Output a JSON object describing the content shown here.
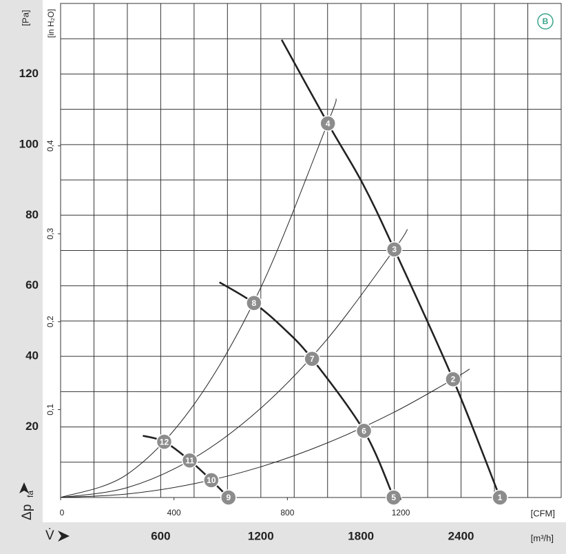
{
  "chart_data": {
    "type": "fan-curve",
    "badge": "B",
    "y_label": "[Pa]",
    "y2_label": "[in H₂O]",
    "y_symbol": "Δp",
    "y_subscript": "fa",
    "x_symbol": "V̇",
    "x_label": "[m³/h]",
    "x2_label": "[CFM]",
    "xlim": [
      0,
      3000
    ],
    "xticks": [
      600,
      1200,
      1800,
      2400
    ],
    "minor_xticks": [
      0,
      200,
      400,
      800,
      1000,
      1400,
      1600,
      2000,
      2200,
      2600,
      2800,
      3000
    ],
    "x2lim": [
      0,
      1765.7
    ],
    "x2ticks": [
      0,
      400,
      800,
      1200
    ],
    "ylim": [
      0,
      140
    ],
    "yticks": [
      20,
      40,
      60,
      80,
      100,
      120
    ],
    "minor_yticks": [
      0,
      10,
      30,
      50,
      70,
      90,
      110,
      130,
      140
    ],
    "y2lim": [
      0,
      0.562
    ],
    "y2ticks": [
      {
        "value": 0.1,
        "label": "0,1"
      },
      {
        "value": 0.2,
        "label": "0,2"
      },
      {
        "value": 0.3,
        "label": "0,3"
      },
      {
        "value": 0.4,
        "label": "0,4"
      }
    ],
    "series": [
      {
        "kind": "fan",
        "color": "#222222",
        "x": [
          1325,
          1602,
          1810,
          2000,
          2352,
          2633
        ],
        "values": [
          129.7,
          106,
          89,
          70.3,
          33.5,
          0
        ]
      },
      {
        "kind": "fan",
        "color": "#222222",
        "x": [
          952,
          1159,
          1333,
          1507,
          1818,
          1996
        ],
        "values": [
          61,
          55.1,
          48.1,
          39.3,
          18.9,
          0
        ]
      },
      {
        "kind": "fan",
        "color": "#222222",
        "x": [
          493,
          621,
          774,
          903,
          1006
        ],
        "values": [
          17.5,
          15.8,
          10.5,
          4.9,
          0
        ]
      },
      {
        "kind": "system",
        "color": "#222222",
        "x": [
          0,
          400,
          800,
          1200,
          1600,
          1652
        ],
        "values": [
          0,
          6.6,
          26.4,
          59.5,
          106,
          113
        ]
      },
      {
        "kind": "system",
        "color": "#222222",
        "x": [
          0,
          400,
          800,
          1200,
          1600,
          2000,
          2079
        ],
        "values": [
          0,
          2.8,
          11.2,
          25.3,
          45,
          70.3,
          76
        ]
      },
      {
        "kind": "system",
        "color": "#222222",
        "x": [
          0,
          400,
          800,
          1200,
          1600,
          2000,
          2352,
          2451
        ],
        "values": [
          0,
          1,
          3.9,
          8.7,
          15.5,
          24.2,
          33.5,
          36.4
        ]
      }
    ],
    "points": [
      {
        "label": "1",
        "x": 2633,
        "y": 0
      },
      {
        "label": "2",
        "x": 2352,
        "y": 33.5
      },
      {
        "label": "3",
        "x": 2000,
        "y": 70.3
      },
      {
        "label": "4",
        "x": 1602,
        "y": 106
      },
      {
        "label": "5",
        "x": 1996,
        "y": 0
      },
      {
        "label": "6",
        "x": 1818,
        "y": 18.9
      },
      {
        "label": "7",
        "x": 1507,
        "y": 39.3
      },
      {
        "label": "8",
        "x": 1159,
        "y": 55.1
      },
      {
        "label": "9",
        "x": 1006,
        "y": 0
      },
      {
        "label": "10",
        "x": 903,
        "y": 4.9
      },
      {
        "label": "11",
        "x": 774,
        "y": 10.5
      },
      {
        "label": "12",
        "x": 621,
        "y": 15.8
      }
    ]
  }
}
